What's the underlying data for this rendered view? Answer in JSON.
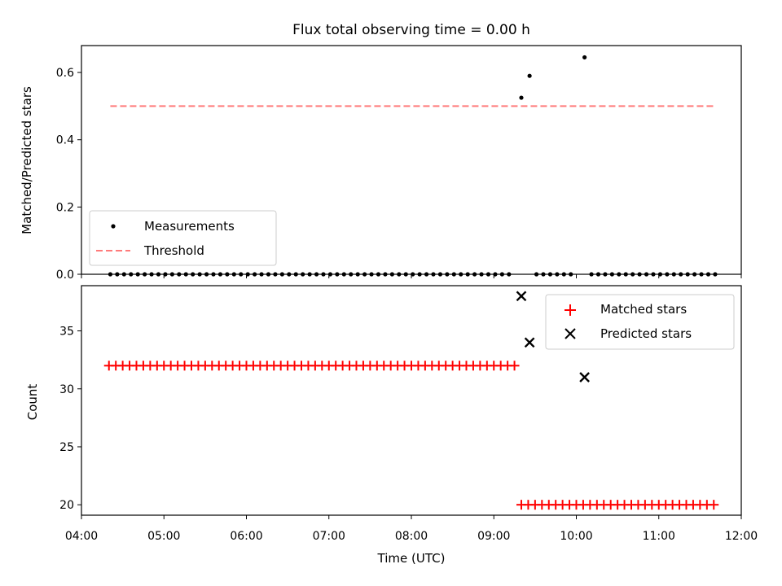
{
  "figure": {
    "title": "Flux total observing time = 0.00 h",
    "xlabel": "Time (UTC)",
    "xticks": [
      "04:00",
      "05:00",
      "06:00",
      "07:00",
      "08:00",
      "09:00",
      "10:00",
      "11:00",
      "12:00"
    ]
  },
  "chart_data": [
    {
      "type": "scatter",
      "ylabel": "Matched/Predicted stars",
      "ylim": [
        0,
        0.68
      ],
      "xlim": [
        "04:00",
        "12:00"
      ],
      "yticks": [
        "0.0",
        "0.2",
        "0.4",
        "0.6"
      ],
      "grid": false,
      "legend_position": "lower-left",
      "series": [
        {
          "name": "Measurements",
          "marker": "dot",
          "color": "#000000",
          "points": [
            {
              "x": "09:20",
              "y": 0.525
            },
            {
              "x": "09:26",
              "y": 0.59
            },
            {
              "x": "10:06",
              "y": 0.645
            }
          ],
          "zero_runs": [
            {
              "from": "04:21",
              "to": "09:14",
              "step_min": 5
            },
            {
              "from": "09:31",
              "to": "09:58",
              "step_min": 5
            },
            {
              "from": "10:11",
              "to": "11:41",
              "step_min": 5
            }
          ]
        },
        {
          "name": "Threshold",
          "marker": "dashed-line",
          "color": "#ff7b7b",
          "y": 0.5,
          "x_from": "04:21",
          "x_to": "11:41"
        }
      ]
    },
    {
      "type": "scatter",
      "ylabel": "Count",
      "ylim": [
        19.1,
        38.9
      ],
      "xlim": [
        "04:00",
        "12:00"
      ],
      "yticks": [
        "20",
        "25",
        "30",
        "35"
      ],
      "grid": false,
      "legend_position": "top-right",
      "series": [
        {
          "name": "Matched stars",
          "marker": "plus",
          "color": "#ff0000",
          "runs": [
            {
              "from": "04:20",
              "to": "09:15",
              "step_min": 5,
              "y": 32
            },
            {
              "from": "09:20",
              "to": "11:40",
              "step_min": 5,
              "y": 20
            }
          ]
        },
        {
          "name": "Predicted stars",
          "marker": "x",
          "color": "#000000",
          "points": [
            {
              "x": "09:20",
              "y": 38
            },
            {
              "x": "09:26",
              "y": 34
            },
            {
              "x": "10:06",
              "y": 31
            }
          ]
        }
      ]
    }
  ]
}
